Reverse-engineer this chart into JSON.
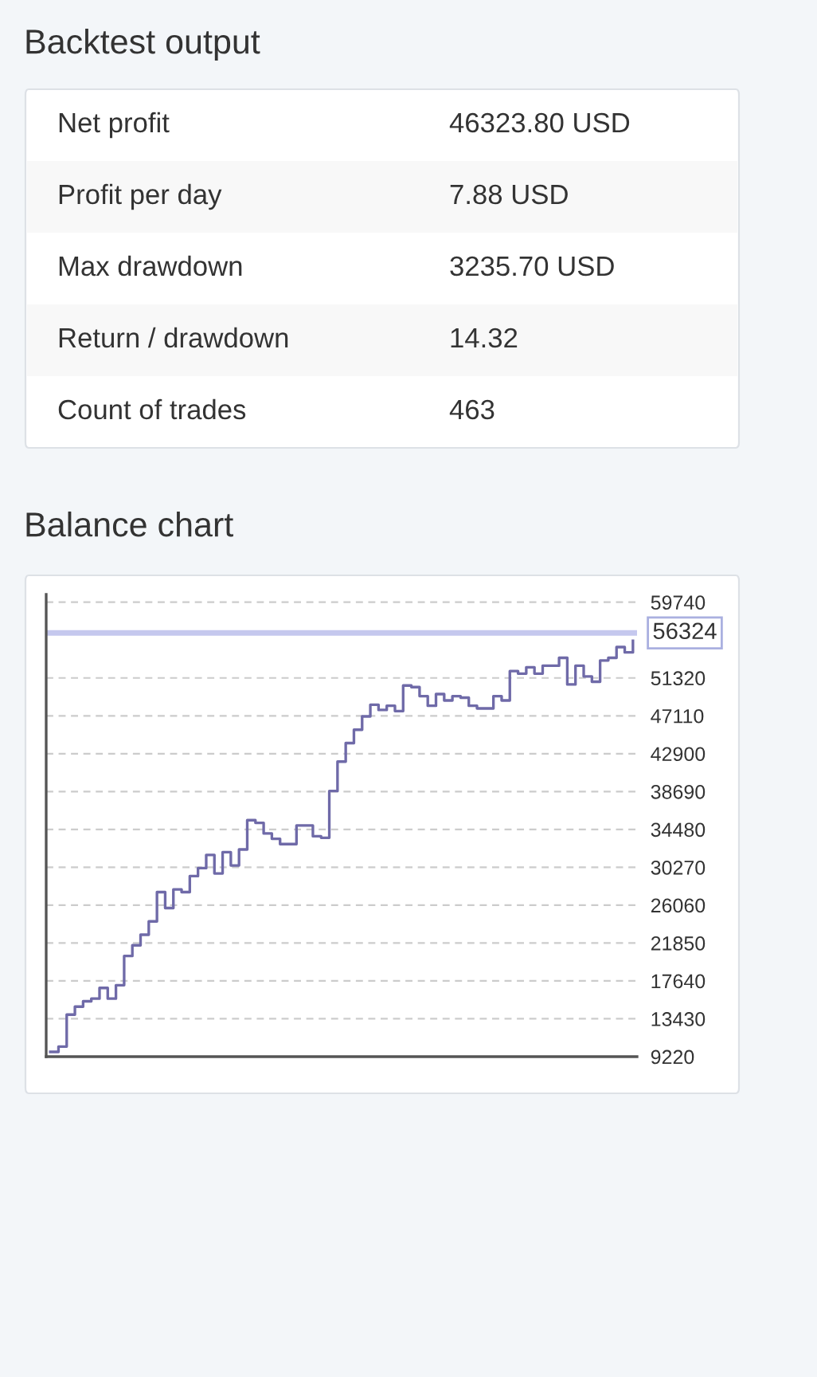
{
  "chart_data": [
    {
      "type": "other",
      "title": "Backtest output",
      "annotations": [
        "Net profit",
        "46323.80 USD",
        "Profit per day",
        "7.88 USD",
        "Max drawdown",
        "3235.70 USD",
        "Return / drawdown",
        "14.32",
        "Count of trades",
        "463"
      ]
    },
    {
      "type": "step",
      "title": "Balance chart",
      "categories": [
        null,
        null,
        null,
        null,
        null,
        null,
        null,
        null,
        null,
        null,
        null,
        null,
        null,
        null,
        null,
        null,
        null,
        null,
        null,
        null,
        null,
        null,
        null,
        null,
        null,
        null,
        null,
        null,
        null,
        null,
        null,
        null,
        null,
        null,
        null,
        null,
        null,
        null,
        null,
        null,
        null,
        null,
        null,
        null,
        null,
        null,
        null,
        null,
        null,
        null,
        null,
        null,
        null,
        null,
        null,
        null,
        null,
        null,
        null,
        null,
        null,
        null,
        null,
        null,
        null,
        null,
        null,
        null,
        null,
        null,
        null,
        null
      ],
      "series": [
        {
          "color": "#6f6aa8",
          "values": [
            9750,
            10340,
            13890,
            14780,
            15380,
            15670,
            16860,
            15670,
            17160,
            20410,
            21600,
            22770,
            24260,
            27510,
            25740,
            27810,
            27510,
            29290,
            30180,
            31650,
            29590,
            31950,
            30470,
            32250,
            35510,
            35210,
            34030,
            33440,
            32850,
            32850,
            34920,
            34920,
            33720,
            33550,
            38750,
            42020,
            44080,
            45560,
            47050,
            48340,
            47760,
            48230,
            47640,
            50480,
            50300,
            49300,
            48230,
            49530,
            48820,
            49300,
            49130,
            48230,
            47930,
            47930,
            49300,
            48820,
            52080,
            51800,
            52510,
            51800,
            52680,
            52680,
            53560,
            50600,
            52680,
            51490,
            50900,
            53260,
            53560,
            54750,
            54160,
            55450
          ]
        }
      ],
      "ylim": [
        9220,
        60600
      ],
      "yticks": [
        9220,
        13430,
        17640,
        21850,
        26060,
        30270,
        34480,
        38690,
        42900,
        47110,
        51320,
        59740
      ],
      "grid": "y",
      "line_style": "solid",
      "tick_labels": "y",
      "ref_lines": [
        {
          "axis": "y",
          "value": 56324,
          "label": "56324",
          "color": "#c5c8ee"
        }
      ]
    }
  ]
}
